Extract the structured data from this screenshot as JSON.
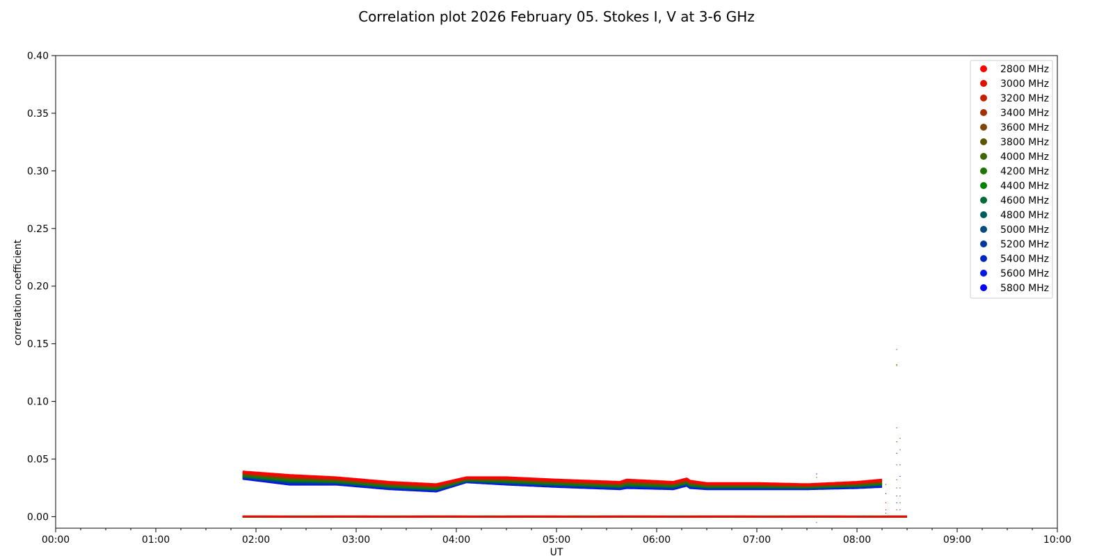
{
  "chart_data": {
    "type": "scatter",
    "title": "Correlation plot 2026 February 05. Stokes I, V at 3-6 GHz",
    "xlabel": "UT",
    "ylabel": "correlation coefficient",
    "xlim": [
      "00:00",
      "10:00"
    ],
    "ylim": [
      -0.01,
      0.4
    ],
    "x_ticks": [
      "00:00",
      "01:00",
      "02:00",
      "03:00",
      "04:00",
      "05:00",
      "06:00",
      "07:00",
      "08:00",
      "09:00",
      "10:00"
    ],
    "y_ticks": [
      0.0,
      0.05,
      0.1,
      0.15,
      0.2,
      0.25,
      0.3,
      0.35,
      0.4
    ],
    "y_tick_labels": [
      "0.00",
      "0.05",
      "0.10",
      "0.15",
      "0.20",
      "0.25",
      "0.30",
      "0.35",
      "0.40"
    ],
    "legend_position": "top-right",
    "grid": false,
    "series": [
      {
        "name": "2800 MHz",
        "color": "#ff0000"
      },
      {
        "name": "3000 MHz",
        "color": "#e00f00"
      },
      {
        "name": "3200 MHz",
        "color": "#c52000"
      },
      {
        "name": "3400 MHz",
        "color": "#a33100"
      },
      {
        "name": "3600 MHz",
        "color": "#7e4400"
      },
      {
        "name": "3800 MHz",
        "color": "#5e5500"
      },
      {
        "name": "4000 MHz",
        "color": "#3d6600"
      },
      {
        "name": "4200 MHz",
        "color": "#1e7600"
      },
      {
        "name": "4400 MHz",
        "color": "#008200"
      },
      {
        "name": "4600 MHz",
        "color": "#006a3a"
      },
      {
        "name": "4800 MHz",
        "color": "#005b5b"
      },
      {
        "name": "5000 MHz",
        "color": "#004b80"
      },
      {
        "name": "5200 MHz",
        "color": "#00389c"
      },
      {
        "name": "5400 MHz",
        "color": "#0028c0"
      },
      {
        "name": "5600 MHz",
        "color": "#0018e0"
      },
      {
        "name": "5800 MHz",
        "color": "#0000ff"
      }
    ],
    "stokes_I_profile": {
      "x": [
        "01:52",
        "02:20",
        "02:48",
        "03:20",
        "03:48",
        "04:06",
        "04:30",
        "05:00",
        "05:38",
        "05:42",
        "06:10",
        "06:18",
        "06:20",
        "06:30",
        "07:00",
        "07:30",
        "08:00",
        "08:15"
      ],
      "top": [
        0.039,
        0.036,
        0.034,
        0.03,
        0.028,
        0.034,
        0.034,
        0.032,
        0.03,
        0.032,
        0.03,
        0.033,
        0.031,
        0.029,
        0.029,
        0.028,
        0.03,
        0.032
      ],
      "bottom": [
        0.033,
        0.028,
        0.028,
        0.024,
        0.022,
        0.03,
        0.028,
        0.026,
        0.024,
        0.025,
        0.024,
        0.027,
        0.025,
        0.024,
        0.024,
        0.024,
        0.025,
        0.026
      ]
    },
    "stokes_V_level": 0.0,
    "time_range_observed": [
      "01:52",
      "08:30"
    ]
  }
}
